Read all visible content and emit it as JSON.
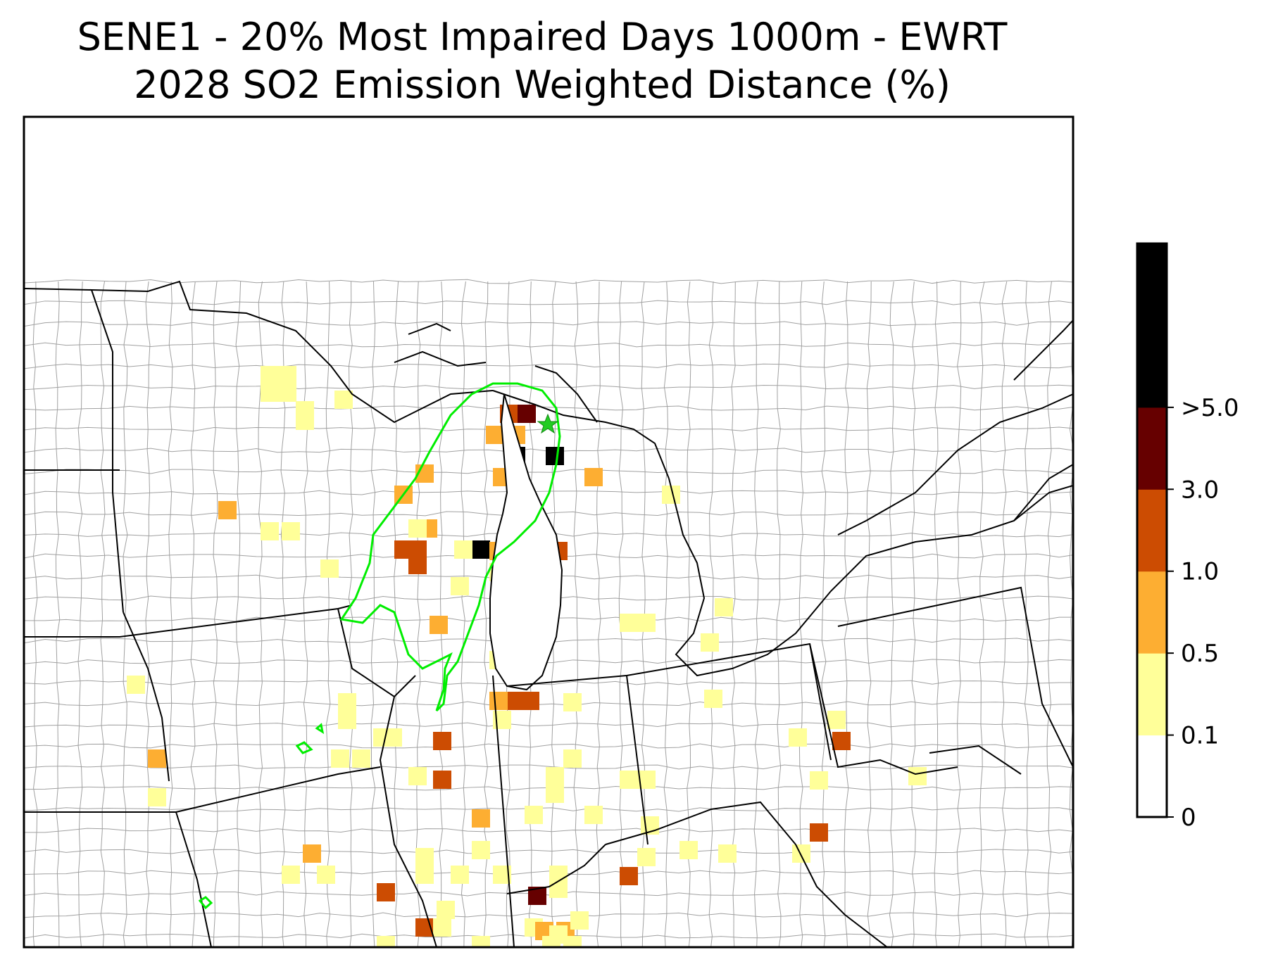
{
  "title": {
    "line1": "SENE1 - 20% Most Impaired Days 1000m - EWRT",
    "line2": "2028 SO2 Emission Weighted Distance (%)"
  },
  "colorbar": {
    "bins": [
      {
        "label": "0",
        "color": "#ffffff"
      },
      {
        "label": "0.1",
        "color": "#ffff99"
      },
      {
        "label": "0.5",
        "color": "#fdae32"
      },
      {
        "label": "1.0",
        "color": "#cc4c02"
      },
      {
        "label": "3.0",
        "color": "#660000"
      },
      {
        "label": ">5.0",
        "color": "#000000"
      }
    ]
  },
  "map": {
    "boundary_color": "#00ee00",
    "site_marker_color": "#22cc22",
    "state_line_color": "#000000",
    "county_line_color": "#9a9a9a"
  }
}
